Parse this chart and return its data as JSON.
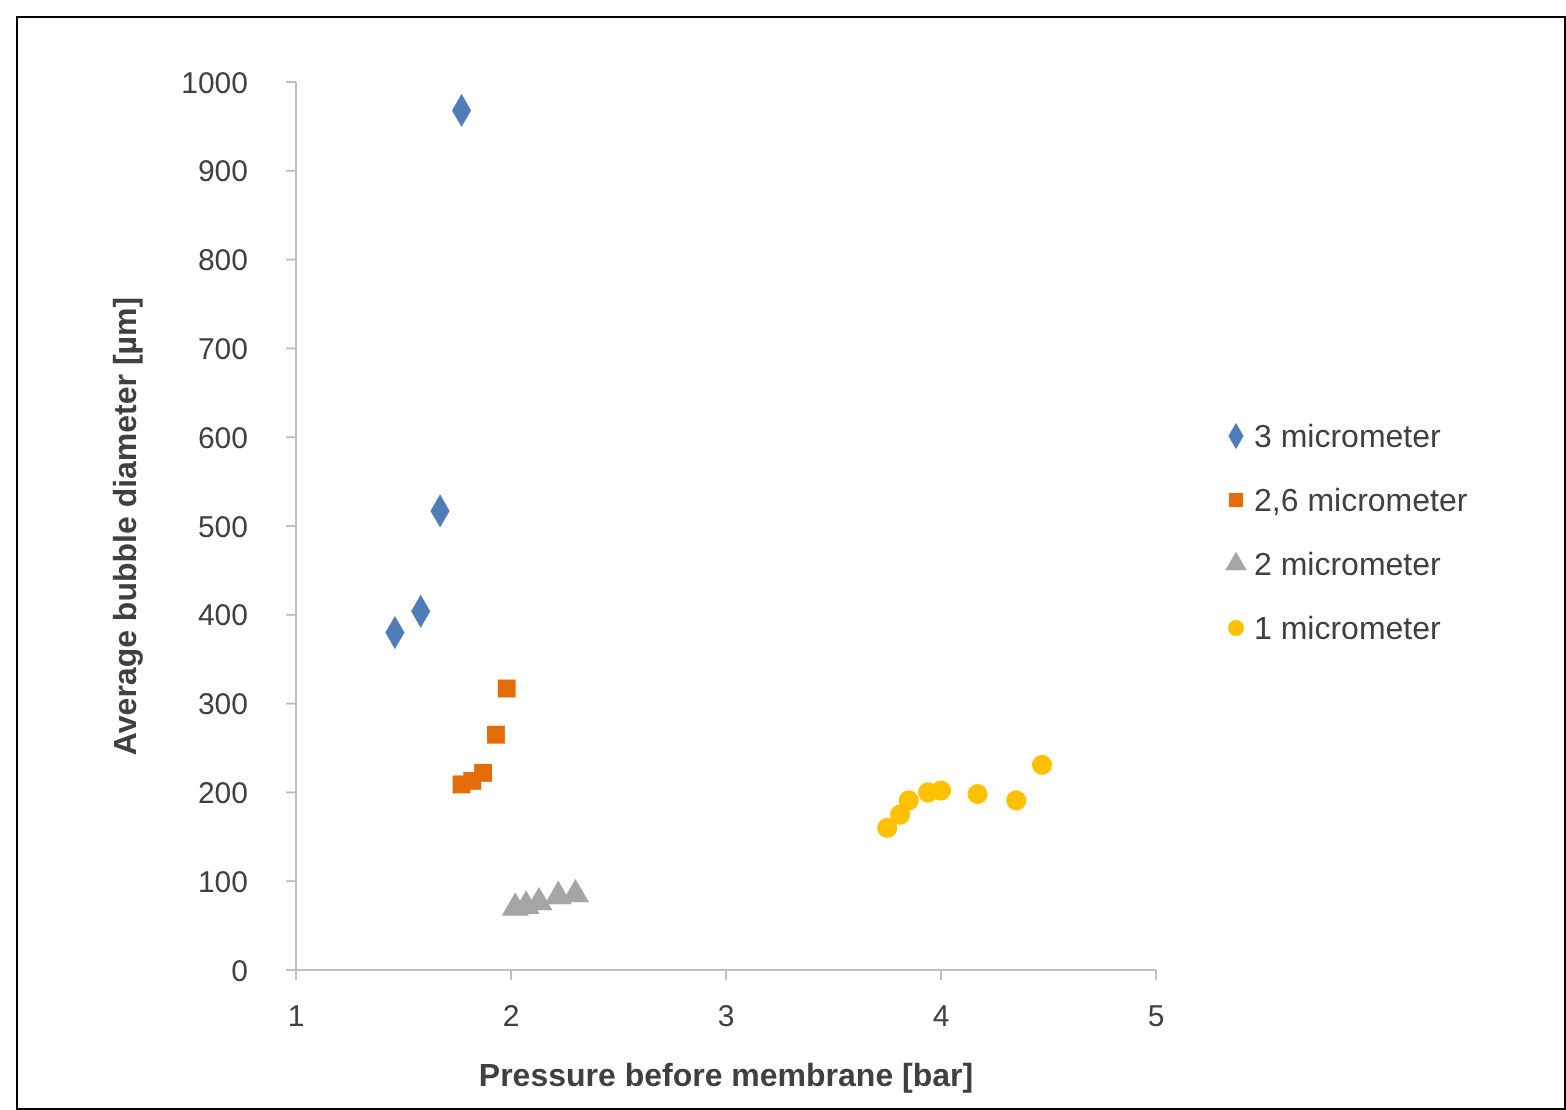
{
  "chart_data": {
    "type": "scatter",
    "xlabel": "Pressure before membrane [bar]",
    "ylabel": "Average bubble diameter [µm]",
    "xlim": [
      1,
      5
    ],
    "xticks": [
      1,
      2,
      3,
      4,
      5
    ],
    "ylim": [
      0,
      1000
    ],
    "yticks": [
      0,
      100,
      200,
      300,
      400,
      500,
      600,
      700,
      800,
      900,
      1000
    ],
    "grid": false,
    "legend": "right",
    "series": [
      {
        "name": "3 micrometer",
        "color": "#4f7db8",
        "marker": "diamond",
        "x": [
          1.46,
          1.58,
          1.67,
          1.77
        ],
        "values": [
          380,
          404,
          517,
          968
        ]
      },
      {
        "name": "2,6 micrometer",
        "color": "#e46c0a",
        "marker": "square",
        "x": [
          1.77,
          1.82,
          1.87,
          1.93,
          1.98
        ],
        "values": [
          209,
          213,
          222,
          265,
          317
        ]
      },
      {
        "name": "2 micrometer",
        "color": "#a5a5a5",
        "marker": "triangle",
        "x": [
          2.02,
          2.07,
          2.13,
          2.22,
          2.3
        ],
        "values": [
          70,
          72,
          76,
          83,
          85
        ]
      },
      {
        "name": "1 micrometer",
        "color": "#ffc000",
        "marker": "circle",
        "x": [
          3.75,
          3.81,
          3.85,
          3.94,
          4.0,
          4.17,
          4.35,
          4.47
        ],
        "values": [
          160,
          175,
          191,
          200,
          202,
          198,
          191,
          231
        ]
      }
    ]
  }
}
